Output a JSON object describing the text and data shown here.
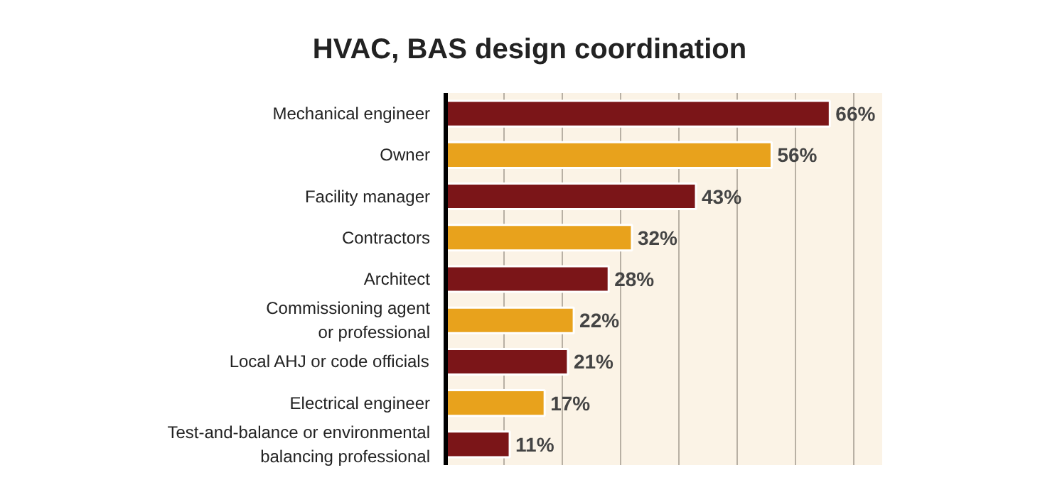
{
  "chart_data": {
    "type": "bar",
    "orientation": "horizontal",
    "title": "HVAC, BAS design coordination",
    "categories": [
      "Mechanical engineer",
      "Owner",
      "Facility manager",
      "Contractors",
      "Architect",
      "Commissioning agent\nor professional",
      "Local AHJ or code officials",
      "Electrical engineer",
      "Test-and-balance or environmental\nbalancing professional"
    ],
    "values": [
      66,
      56,
      43,
      32,
      28,
      22,
      21,
      17,
      11
    ],
    "colors": [
      "#7b1518",
      "#e8a21c",
      "#7b1518",
      "#e8a21c",
      "#7b1518",
      "#e8a21c",
      "#7b1518",
      "#e8a21c",
      "#7b1518"
    ],
    "value_labels": [
      "66%",
      "56%",
      "43%",
      "32%",
      "28%",
      "22%",
      "21%",
      "17%",
      "11%"
    ],
    "xlim": [
      0,
      75
    ],
    "xticks": [
      {
        "value": 0,
        "label": null
      },
      {
        "value": 10,
        "label": null
      },
      {
        "value": 20,
        "label": null
      },
      {
        "value": 30,
        "label": null
      },
      {
        "value": 40,
        "label": null
      },
      {
        "value": 50,
        "label": null
      },
      {
        "value": 60,
        "label": null
      },
      {
        "value": 70,
        "label": null
      }
    ],
    "grid": "x",
    "tick_labels": "y"
  }
}
